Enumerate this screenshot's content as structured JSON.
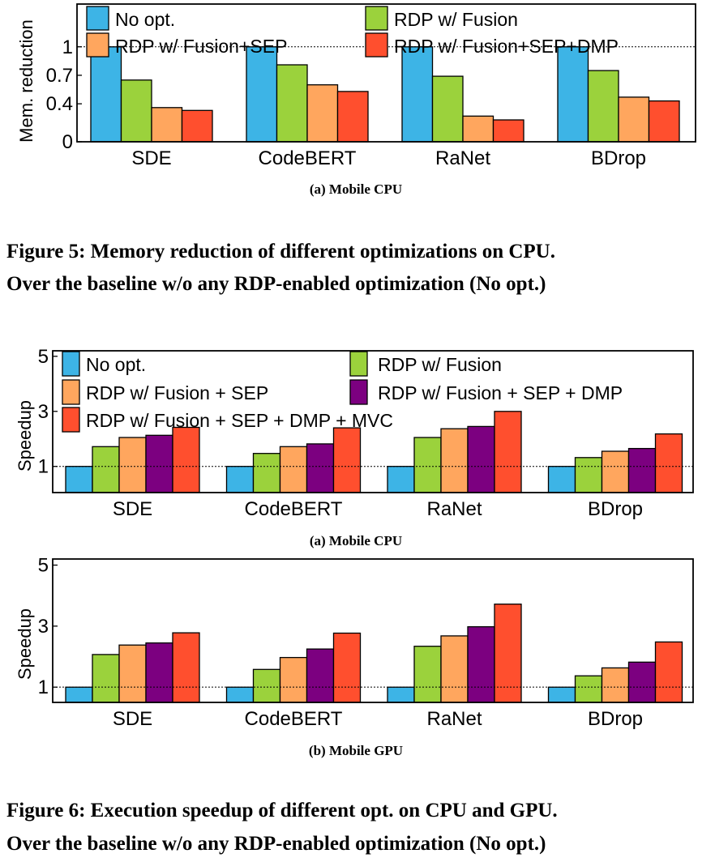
{
  "colors": {
    "no_opt": "#3DB4E6",
    "fusion": "#9BD23C",
    "fusion_sep": "#FFA65E",
    "fusion_sep_dmp": "#7C0080",
    "fusion_sep_dmp_mvc": "#FF4F2E",
    "fusion_sep_dmp_cpu_mem": "#FF4F2E"
  },
  "figure5": {
    "caption_line1": "Figure 5: Memory reduction of different optimizations on CPU.",
    "caption_line2": "Over the baseline w/o any RDP-enabled optimization (No opt.)"
  },
  "figure6": {
    "caption_line1": "Figure 6: Execution speedup of different opt. on CPU and GPU.",
    "caption_line2": "Over the baseline w/o any RDP-enabled optimization (No opt.)"
  },
  "chart_data": [
    {
      "type": "bar",
      "subcaption": "(a) Mobile CPU",
      "ylabel": "Mem. reduction",
      "xlabel": "",
      "ylim": [
        0,
        1.45
      ],
      "yticks": [
        0,
        0.4,
        0.7,
        1
      ],
      "ytick_labels": [
        "0",
        "0.4",
        "0.7",
        "1"
      ],
      "reference_line": 1,
      "legend_position": "top",
      "categories": [
        "SDE",
        "CodeBERT",
        "RaNet",
        "BDrop"
      ],
      "series": [
        {
          "name": "No opt.",
          "color_key": "no_opt",
          "values": [
            1.0,
            1.0,
            1.0,
            1.0
          ]
        },
        {
          "name": "RDP w/ Fusion",
          "color_key": "fusion",
          "values": [
            0.65,
            0.81,
            0.69,
            0.75
          ]
        },
        {
          "name": "RDP w/ Fusion+SEP",
          "color_key": "fusion_sep",
          "values": [
            0.36,
            0.6,
            0.27,
            0.47
          ]
        },
        {
          "name": "RDP w/ Fusion+SEP+DMP",
          "color_key": "fusion_sep_dmp_cpu_mem",
          "values": [
            0.33,
            0.53,
            0.23,
            0.43
          ]
        }
      ]
    },
    {
      "type": "bar",
      "subcaption": "(a) Mobile CPU",
      "ylabel": "Speedup",
      "xlabel": "",
      "ylim": [
        0.05,
        5.2
      ],
      "yticks": [
        1,
        3,
        5
      ],
      "ytick_labels": [
        "1",
        "3",
        "5"
      ],
      "reference_line": 1,
      "legend_position": "top",
      "categories": [
        "SDE",
        "CodeBERT",
        "RaNet",
        "BDrop"
      ],
      "series": [
        {
          "name": "No opt.",
          "color_key": "no_opt",
          "values": [
            1.0,
            1.0,
            1.0,
            1.0
          ]
        },
        {
          "name": "RDP w/ Fusion",
          "color_key": "fusion",
          "values": [
            1.72,
            1.47,
            2.05,
            1.32
          ]
        },
        {
          "name": "RDP w/ Fusion + SEP",
          "color_key": "fusion_sep",
          "values": [
            2.05,
            1.72,
            2.37,
            1.55
          ]
        },
        {
          "name": "RDP w/ Fusion + SEP + DMP",
          "color_key": "fusion_sep_dmp",
          "values": [
            2.13,
            1.82,
            2.45,
            1.65
          ]
        },
        {
          "name": "RDP w/ Fusion + SEP + DMP + MVC",
          "color_key": "fusion_sep_dmp_mvc",
          "values": [
            2.42,
            2.4,
            3.0,
            2.18
          ]
        }
      ]
    },
    {
      "type": "bar",
      "subcaption": "(b) Mobile GPU",
      "ylabel": "Speedup",
      "xlabel": "",
      "ylim": [
        0.5,
        5.2
      ],
      "yticks": [
        1,
        3,
        5
      ],
      "ytick_labels": [
        "1",
        "3",
        "5"
      ],
      "reference_line": 1,
      "legend_position": "none",
      "categories": [
        "SDE",
        "CodeBERT",
        "RaNet",
        "BDrop"
      ],
      "series": [
        {
          "name": "No opt.",
          "color_key": "no_opt",
          "values": [
            1.0,
            1.0,
            1.0,
            1.0
          ]
        },
        {
          "name": "RDP w/ Fusion",
          "color_key": "fusion",
          "values": [
            2.07,
            1.58,
            2.34,
            1.37
          ]
        },
        {
          "name": "RDP w/ Fusion + SEP",
          "color_key": "fusion_sep",
          "values": [
            2.38,
            1.97,
            2.68,
            1.63
          ]
        },
        {
          "name": "RDP w/ Fusion + SEP + DMP",
          "color_key": "fusion_sep_dmp",
          "values": [
            2.45,
            2.25,
            2.98,
            1.82
          ]
        },
        {
          "name": "RDP w/ Fusion + SEP + DMP + MVC",
          "color_key": "fusion_sep_dmp_mvc",
          "values": [
            2.78,
            2.77,
            3.72,
            2.48
          ]
        }
      ]
    }
  ]
}
